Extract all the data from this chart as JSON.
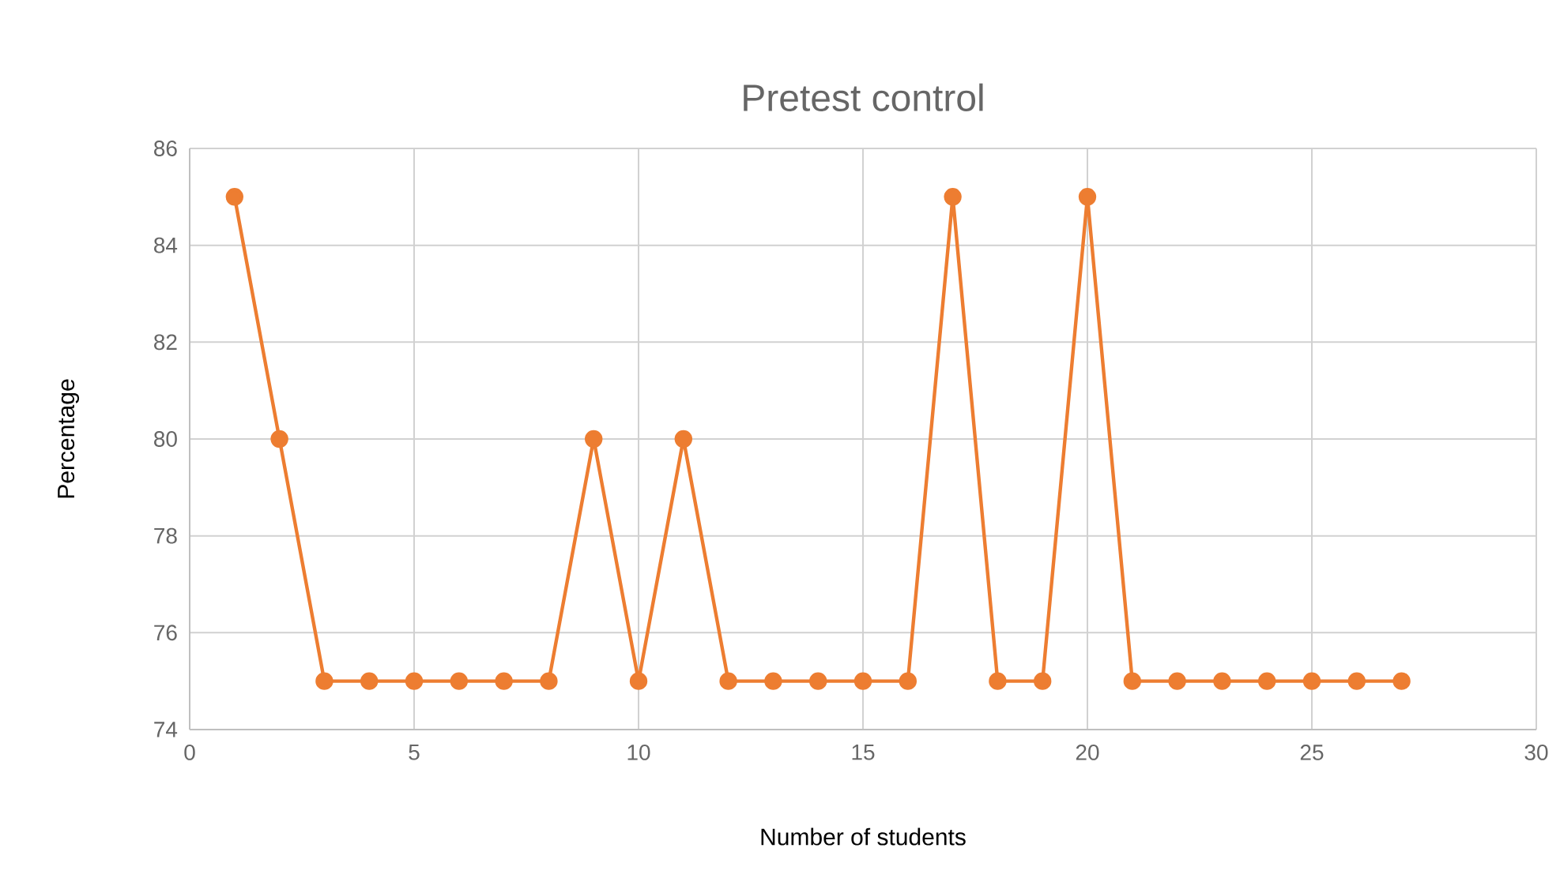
{
  "chart_data": {
    "type": "line",
    "title": "Pretest control",
    "xlabel": "Number of students",
    "ylabel": "Percentage",
    "x": [
      1,
      2,
      3,
      4,
      5,
      6,
      7,
      8,
      9,
      10,
      11,
      12,
      13,
      14,
      15,
      16,
      17,
      18,
      19,
      20,
      21,
      22,
      23,
      24,
      25,
      26,
      27
    ],
    "series": [
      {
        "color": "#ed7d31",
        "values": [
          85,
          80,
          75,
          75,
          75,
          75,
          75,
          75,
          80,
          75,
          80,
          75,
          75,
          75,
          75,
          75,
          85,
          75,
          75,
          85,
          75,
          75,
          75,
          75,
          75,
          75,
          75
        ]
      }
    ],
    "xlim": [
      0,
      30
    ],
    "ylim": [
      74,
      86
    ],
    "xticks": [
      0,
      5,
      10,
      15,
      20,
      25,
      30
    ],
    "yticks": [
      74,
      76,
      78,
      80,
      82,
      84,
      86
    ],
    "grid": true,
    "marker": "circle",
    "line_style": "solid"
  }
}
